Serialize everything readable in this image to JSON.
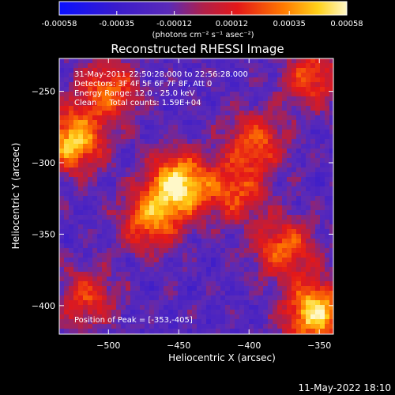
{
  "colorbar": {
    "min": -0.00058,
    "max": 0.00058,
    "tick_labels": [
      "-0.00058",
      "-0.00035",
      "-0.00012",
      "0.00012",
      "0.00035",
      "0.00058"
    ],
    "unit_label": "(photons cm⁻² s⁻¹ asec⁻²)"
  },
  "chart_data": {
    "type": "heatmap",
    "title": "Reconstructed RHESSI Image",
    "xlabel": "Heliocentric X (arcsec)",
    "ylabel": "Heliocentric Y (arcsec)",
    "xlim": [
      -535,
      -340
    ],
    "ylim": [
      -420,
      -227
    ],
    "x_ticks": [
      -500,
      -450,
      -400,
      -350
    ],
    "y_ticks": [
      -400,
      -350,
      -300,
      -250
    ],
    "x_tick_labels": [
      "−500",
      "−450",
      "−400",
      "−350"
    ],
    "y_tick_labels": [
      "−400",
      "−350",
      "−300",
      "−250"
    ],
    "colormap": "hot-metal (blue-purple-red-orange-yellow-white)",
    "sources": [
      {
        "x": -450,
        "y": -315,
        "intensity": 1.0
      },
      {
        "x": -353,
        "y": -405,
        "intensity": 1.0
      },
      {
        "x": -525,
        "y": -285,
        "intensity": 0.9
      },
      {
        "x": -470,
        "y": -340,
        "intensity": 0.7
      },
      {
        "x": -500,
        "y": -250,
        "intensity": 0.65
      },
      {
        "x": -375,
        "y": -360,
        "intensity": 0.65
      },
      {
        "x": -395,
        "y": -285,
        "intensity": 0.6
      },
      {
        "x": -355,
        "y": -240,
        "intensity": 0.55
      },
      {
        "x": -410,
        "y": -320,
        "intensity": 0.55
      },
      {
        "x": -515,
        "y": -395,
        "intensity": 0.5
      }
    ],
    "annotations": {
      "time_range": "31-May-2011 22:50:28.000 to 22:56:28.000",
      "detectors": "Detectors: 3F 4F 5F 6F 7F 8F, Att 0",
      "energy_range": "Energy Range: 12.0 - 25.0 keV",
      "clean_counts": "Clean     Total counts: 1.59E+04",
      "peak": "Position of Peak = [-353,-405]"
    },
    "colors": {
      "background": "#000000",
      "foreground": "#ffffff"
    }
  },
  "footer": {
    "date": "11-May-2022 18:10"
  }
}
